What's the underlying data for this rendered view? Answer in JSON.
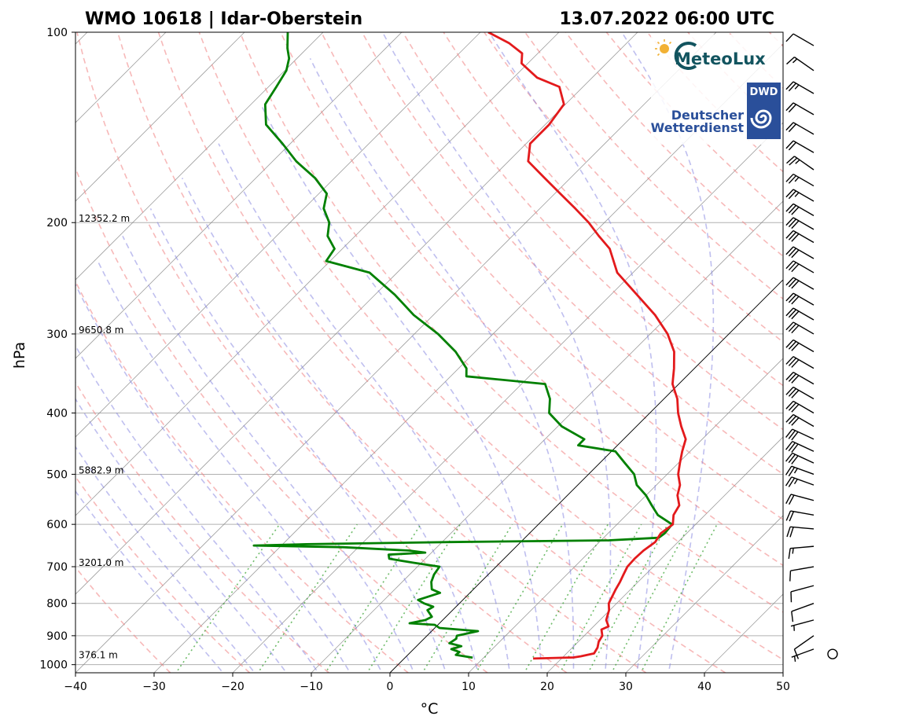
{
  "header": {
    "station": "WMO 10618 | Idar-Oberstein",
    "datetime": "13.07.2022 06:00 UTC"
  },
  "logos": {
    "meteolux": "MeteoLux",
    "dwd_badge": "DWD",
    "dwd_line1": "Deutscher",
    "dwd_line2": "Wetterdienst"
  },
  "colors": {
    "temperature": "#e31a1c",
    "dewpoint": "#008000",
    "dry_adiabat": "#f08080",
    "moist_adiabat": "#8080e0",
    "mixing_ratio": "#33a02c",
    "isotherm": "#808080",
    "grid": "#b0b0b0"
  },
  "chart_data": {
    "type": "skew-t",
    "xlabel": "°C",
    "ylabel": "hPa",
    "xlim": [
      -40,
      50
    ],
    "ylim": [
      1030,
      100
    ],
    "y_scale": "log",
    "grid": true,
    "xticks": [
      "−40",
      "−30",
      "−20",
      "−10",
      "0",
      "10",
      "20",
      "30",
      "40",
      "50"
    ],
    "yticks": [
      {
        "p": 100,
        "label": "100"
      },
      {
        "p": 200,
        "label": "200"
      },
      {
        "p": 300,
        "label": "300"
      },
      {
        "p": 400,
        "label": "400"
      },
      {
        "p": 500,
        "label": "500"
      },
      {
        "p": 600,
        "label": "600"
      },
      {
        "p": 700,
        "label": "700"
      },
      {
        "p": 800,
        "label": "800"
      },
      {
        "p": 900,
        "label": "900"
      },
      {
        "p": 1000,
        "label": "1000"
      }
    ],
    "height_labels": [
      {
        "p": 980,
        "label": "376.1 m"
      },
      {
        "p": 700,
        "label": "3201.0 m"
      },
      {
        "p": 500,
        "label": "5882.9 m"
      },
      {
        "p": 300,
        "label": "9650.8 m"
      },
      {
        "p": 200,
        "label": "12352.2 m"
      }
    ],
    "temperature": [
      [
        978,
        16.4
      ],
      [
        974,
        21.4
      ],
      [
        970,
        22.2
      ],
      [
        960,
        23.5
      ],
      [
        940,
        23.2
      ],
      [
        920,
        22.6
      ],
      [
        900,
        22.3
      ],
      [
        880,
        21.4
      ],
      [
        870,
        21.9
      ],
      [
        850,
        20.8
      ],
      [
        820,
        19.9
      ],
      [
        800,
        19.0
      ],
      [
        760,
        18.1
      ],
      [
        740,
        17.7
      ],
      [
        720,
        17.2
      ],
      [
        700,
        16.7
      ],
      [
        680,
        16.6
      ],
      [
        660,
        16.7
      ],
      [
        640,
        17.1
      ],
      [
        620,
        16.7
      ],
      [
        600,
        17.1
      ],
      [
        580,
        16.0
      ],
      [
        560,
        15.5
      ],
      [
        540,
        14.0
      ],
      [
        520,
        13.0
      ],
      [
        500,
        11.4
      ],
      [
        480,
        10.2
      ],
      [
        460,
        9.0
      ],
      [
        440,
        7.9
      ],
      [
        420,
        5.7
      ],
      [
        400,
        3.6
      ],
      [
        380,
        1.7
      ],
      [
        360,
        -0.8
      ],
      [
        340,
        -2.6
      ],
      [
        320,
        -4.7
      ],
      [
        300,
        -7.8
      ],
      [
        280,
        -11.8
      ],
      [
        260,
        -16.7
      ],
      [
        240,
        -22.0
      ],
      [
        220,
        -26.0
      ],
      [
        210,
        -29.0
      ],
      [
        200,
        -32.0
      ],
      [
        190,
        -35.5
      ],
      [
        180,
        -39.3
      ],
      [
        170,
        -43.3
      ],
      [
        160,
        -47.5
      ],
      [
        150,
        -49.5
      ],
      [
        140,
        -49.5
      ],
      [
        130,
        -50.2
      ],
      [
        122,
        -53.0
      ],
      [
        118,
        -57.0
      ],
      [
        112,
        -60.8
      ],
      [
        108,
        -62.0
      ],
      [
        104,
        -65.0
      ],
      [
        100,
        -69.0
      ]
    ],
    "dewpoint": [
      [
        975,
        8.6
      ],
      [
        965,
        6.1
      ],
      [
        955,
        6.2
      ],
      [
        945,
        4.8
      ],
      [
        935,
        5.7
      ],
      [
        925,
        3.8
      ],
      [
        910,
        4.1
      ],
      [
        900,
        3.8
      ],
      [
        885,
        5.9
      ],
      [
        875,
        0.6
      ],
      [
        865,
        -0.4
      ],
      [
        860,
        -3.8
      ],
      [
        850,
        -2.2
      ],
      [
        840,
        -1.8
      ],
      [
        820,
        -3.2
      ],
      [
        810,
        -2.9
      ],
      [
        800,
        -4.5
      ],
      [
        790,
        -5.7
      ],
      [
        770,
        -3.8
      ],
      [
        760,
        -5.3
      ],
      [
        740,
        -6.3
      ],
      [
        720,
        -6.9
      ],
      [
        700,
        -7.2
      ],
      [
        690,
        -11.0
      ],
      [
        680,
        -14.6
      ],
      [
        670,
        -15.2
      ],
      [
        665,
        -10.8
      ],
      [
        660,
        -13.1
      ],
      [
        652,
        -22.0
      ],
      [
        648,
        -33.5
      ],
      [
        645,
        -27.0
      ],
      [
        640,
        -9.0
      ],
      [
        636,
        11.0
      ],
      [
        630,
        17.0
      ],
      [
        620,
        17.2
      ],
      [
        600,
        17.0
      ],
      [
        580,
        14.0
      ],
      [
        560,
        12.0
      ],
      [
        540,
        10.0
      ],
      [
        520,
        7.5
      ],
      [
        500,
        5.8
      ],
      [
        480,
        3.2
      ],
      [
        460,
        0.5
      ],
      [
        450,
        -5.0
      ],
      [
        440,
        -5.0
      ],
      [
        420,
        -9.5
      ],
      [
        400,
        -12.8
      ],
      [
        380,
        -14.5
      ],
      [
        360,
        -17.0
      ],
      [
        350,
        -28.0
      ],
      [
        340,
        -29.0
      ],
      [
        320,
        -32.5
      ],
      [
        300,
        -37.0
      ],
      [
        280,
        -42.5
      ],
      [
        260,
        -47.5
      ],
      [
        240,
        -53.5
      ],
      [
        230,
        -60.5
      ],
      [
        220,
        -61.0
      ],
      [
        210,
        -63.5
      ],
      [
        200,
        -65.0
      ],
      [
        190,
        -67.5
      ],
      [
        180,
        -69.0
      ],
      [
        170,
        -72.5
      ],
      [
        160,
        -77.0
      ],
      [
        150,
        -81.0
      ],
      [
        140,
        -85.5
      ],
      [
        130,
        -88.2
      ],
      [
        122,
        -89.0
      ],
      [
        115,
        -89.8
      ],
      [
        110,
        -91.0
      ],
      [
        106,
        -92.5
      ],
      [
        100,
        -94.5
      ]
    ],
    "wind_barbs": [
      {
        "p": 990,
        "dir": 240,
        "spd": 2
      },
      {
        "p": 945,
        "dir": 250,
        "spd": 5
      },
      {
        "p": 900,
        "dir": 235,
        "spd": 10
      },
      {
        "p": 850,
        "dir": 255,
        "spd": 5
      },
      {
        "p": 800,
        "dir": 250,
        "spd": 10
      },
      {
        "p": 750,
        "dir": 255,
        "spd": 10
      },
      {
        "p": 700,
        "dir": 260,
        "spd": 10
      },
      {
        "p": 650,
        "dir": 265,
        "spd": 15
      },
      {
        "p": 610,
        "dir": 275,
        "spd": 20
      },
      {
        "p": 580,
        "dir": 280,
        "spd": 20
      },
      {
        "p": 550,
        "dir": 285,
        "spd": 20
      },
      {
        "p": 520,
        "dir": 290,
        "spd": 25
      },
      {
        "p": 500,
        "dir": 290,
        "spd": 25
      },
      {
        "p": 480,
        "dir": 295,
        "spd": 30
      },
      {
        "p": 460,
        "dir": 295,
        "spd": 30
      },
      {
        "p": 440,
        "dir": 295,
        "spd": 30
      },
      {
        "p": 420,
        "dir": 300,
        "spd": 30
      },
      {
        "p": 400,
        "dir": 300,
        "spd": 30
      },
      {
        "p": 380,
        "dir": 300,
        "spd": 30
      },
      {
        "p": 360,
        "dir": 300,
        "spd": 30
      },
      {
        "p": 340,
        "dir": 300,
        "spd": 30
      },
      {
        "p": 320,
        "dir": 300,
        "spd": 30
      },
      {
        "p": 300,
        "dir": 300,
        "spd": 30
      },
      {
        "p": 285,
        "dir": 300,
        "spd": 30
      },
      {
        "p": 270,
        "dir": 300,
        "spd": 30
      },
      {
        "p": 255,
        "dir": 300,
        "spd": 30
      },
      {
        "p": 240,
        "dir": 300,
        "spd": 30
      },
      {
        "p": 228,
        "dir": 300,
        "spd": 30
      },
      {
        "p": 215,
        "dir": 300,
        "spd": 30
      },
      {
        "p": 205,
        "dir": 300,
        "spd": 30
      },
      {
        "p": 195,
        "dir": 300,
        "spd": 30
      },
      {
        "p": 185,
        "dir": 300,
        "spd": 25
      },
      {
        "p": 175,
        "dir": 300,
        "spd": 25
      },
      {
        "p": 165,
        "dir": 305,
        "spd": 25
      },
      {
        "p": 155,
        "dir": 300,
        "spd": 20
      },
      {
        "p": 145,
        "dir": 300,
        "spd": 20
      },
      {
        "p": 135,
        "dir": 300,
        "spd": 20
      },
      {
        "p": 125,
        "dir": 300,
        "spd": 25
      },
      {
        "p": 115,
        "dir": 305,
        "spd": 15
      },
      {
        "p": 105,
        "dir": 300,
        "spd": 10
      }
    ]
  }
}
